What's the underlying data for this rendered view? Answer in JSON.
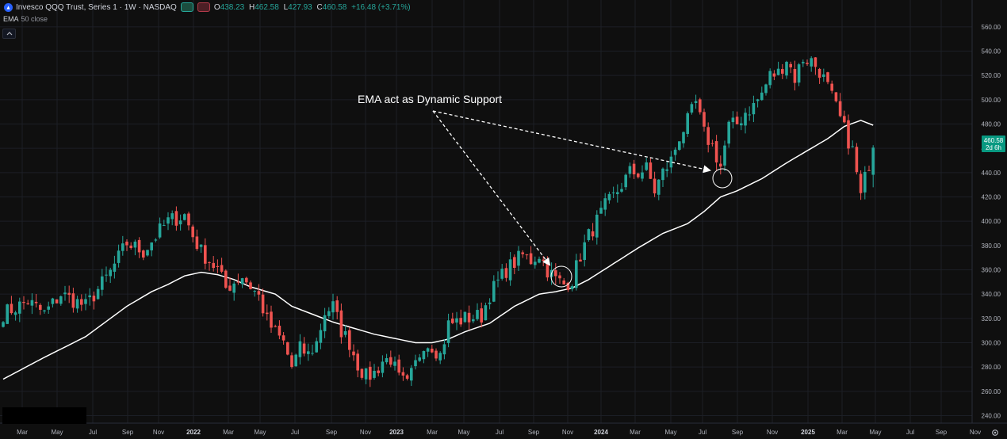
{
  "header": {
    "symbol_title": "Invesco QQQ Trust, Series 1 · 1W · NASDAQ",
    "ohlc": [
      {
        "key": "O",
        "value": "438.23"
      },
      {
        "key": "H",
        "value": "462.58"
      },
      {
        "key": "L",
        "value": "427.93"
      },
      {
        "key": "C",
        "value": "460.58"
      }
    ],
    "change": "+16.48 (+3.71%)"
  },
  "indicator": {
    "name": "EMA",
    "params": "50 close"
  },
  "price_tag": {
    "price": "460.58",
    "countdown": "2d 6h"
  },
  "annotation": {
    "text": "EMA act as Dynamic Support"
  },
  "colors": {
    "up": "#26a69a",
    "down": "#ef5350",
    "ema": "#ffffff",
    "background": "#0f0f0f",
    "grid": "#1c1f26"
  },
  "chart_data": {
    "type": "candlestick",
    "timeframe": "1W",
    "ylim": [
      230,
      570
    ],
    "y_ticks": [
      "240.00",
      "260.00",
      "280.00",
      "300.00",
      "320.00",
      "340.00",
      "360.00",
      "380.00",
      "400.00",
      "420.00",
      "440.00",
      "460.00",
      "480.00",
      "500.00",
      "520.00",
      "540.00",
      "560.00"
    ],
    "x_ticks": [
      "Mar",
      "May",
      "Jul",
      "Sep",
      "Nov",
      "2022",
      "Mar",
      "May",
      "Jul",
      "Sep",
      "Nov",
      "2023",
      "Mar",
      "May",
      "Jul",
      "Sep",
      "Nov",
      "2024",
      "Mar",
      "May",
      "Jul",
      "Sep",
      "Nov",
      "2025",
      "Mar",
      "May",
      "Jul",
      "Sep",
      "Nov"
    ],
    "close_anchors": [
      [
        0,
        324
      ],
      [
        6,
        334
      ],
      [
        10,
        324
      ],
      [
        14,
        340
      ],
      [
        20,
        330
      ],
      [
        26,
        358
      ],
      [
        30,
        382
      ],
      [
        34,
        375
      ],
      [
        38,
        392
      ],
      [
        40,
        400
      ],
      [
        44,
        405
      ],
      [
        46,
        388
      ],
      [
        48,
        375
      ],
      [
        52,
        360
      ],
      [
        54,
        345
      ],
      [
        58,
        355
      ],
      [
        62,
        338
      ],
      [
        64,
        318
      ],
      [
        66,
        308
      ],
      [
        68,
        300
      ],
      [
        70,
        280
      ],
      [
        72,
        295
      ],
      [
        74,
        290
      ],
      [
        76,
        300
      ],
      [
        78,
        325
      ],
      [
        80,
        330
      ],
      [
        82,
        310
      ],
      [
        84,
        300
      ],
      [
        86,
        282
      ],
      [
        88,
        272
      ],
      [
        90,
        275
      ],
      [
        92,
        285
      ],
      [
        94,
        287
      ],
      [
        96,
        270
      ],
      [
        98,
        265
      ],
      [
        100,
        282
      ],
      [
        102,
        300
      ],
      [
        104,
        298
      ],
      [
        106,
        290
      ],
      [
        108,
        315
      ],
      [
        112,
        320
      ],
      [
        116,
        322
      ],
      [
        118,
        340
      ],
      [
        120,
        350
      ],
      [
        122,
        360
      ],
      [
        126,
        372
      ],
      [
        128,
        368
      ],
      [
        130,
        373
      ],
      [
        132,
        360
      ],
      [
        134,
        352
      ],
      [
        136,
        348
      ],
      [
        138,
        352
      ],
      [
        140,
        372
      ],
      [
        142,
        388
      ],
      [
        146,
        412
      ],
      [
        148,
        420
      ],
      [
        152,
        440
      ],
      [
        154,
        440
      ],
      [
        156,
        443
      ],
      [
        158,
        425
      ],
      [
        160,
        440
      ],
      [
        162,
        450
      ],
      [
        164,
        470
      ],
      [
        166,
        482
      ],
      [
        168,
        497
      ],
      [
        170,
        472
      ],
      [
        172,
        462
      ],
      [
        174,
        445
      ],
      [
        176,
        478
      ],
      [
        178,
        480
      ],
      [
        180,
        490
      ],
      [
        182,
        495
      ],
      [
        184,
        505
      ],
      [
        186,
        520
      ],
      [
        188,
        522
      ],
      [
        190,
        534
      ],
      [
        192,
        518
      ],
      [
        194,
        534
      ],
      [
        196,
        532
      ],
      [
        198,
        524
      ],
      [
        200,
        510
      ],
      [
        202,
        493
      ],
      [
        204,
        475
      ],
      [
        206,
        458
      ],
      [
        208,
        420
      ],
      [
        209,
        435
      ],
      [
        210,
        448
      ],
      [
        211,
        460.58
      ]
    ],
    "ema_period": 50,
    "ema_anchors": [
      [
        0,
        270
      ],
      [
        10,
        288
      ],
      [
        20,
        305
      ],
      [
        30,
        330
      ],
      [
        36,
        342
      ],
      [
        40,
        348
      ],
      [
        44,
        355
      ],
      [
        48,
        358
      ],
      [
        52,
        356
      ],
      [
        56,
        352
      ],
      [
        60,
        346
      ],
      [
        66,
        340
      ],
      [
        70,
        330
      ],
      [
        80,
        317
      ],
      [
        90,
        307
      ],
      [
        100,
        300
      ],
      [
        104,
        300
      ],
      [
        108,
        303
      ],
      [
        112,
        309
      ],
      [
        118,
        316
      ],
      [
        124,
        330
      ],
      [
        130,
        340
      ],
      [
        134,
        342
      ],
      [
        138,
        345
      ],
      [
        142,
        352
      ],
      [
        148,
        365
      ],
      [
        154,
        378
      ],
      [
        160,
        390
      ],
      [
        166,
        398
      ],
      [
        170,
        408
      ],
      [
        174,
        420
      ],
      [
        178,
        425
      ],
      [
        184,
        435
      ],
      [
        190,
        448
      ],
      [
        196,
        460
      ],
      [
        200,
        468
      ],
      [
        204,
        478
      ],
      [
        208,
        483
      ],
      [
        211,
        479
      ]
    ],
    "highlighted_touches": [
      {
        "date_label": "Oct 2023",
        "price": 346
      },
      {
        "date_label": "Aug 2024",
        "price": 429
      }
    ]
  }
}
